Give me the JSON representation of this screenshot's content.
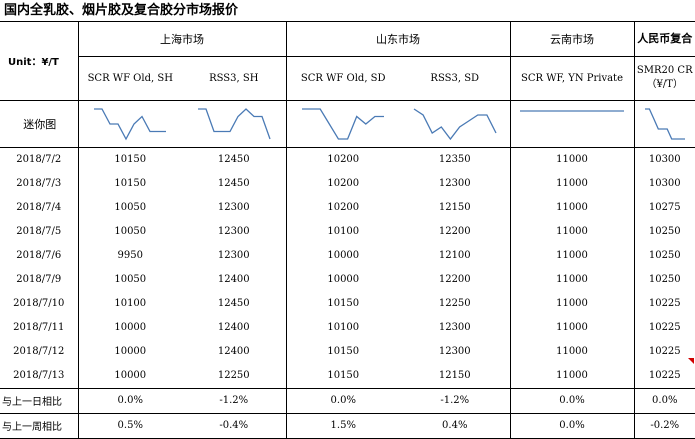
{
  "title": "国内全乳胶、烟片胶及复合胶分市场报价",
  "unit_label": "Unit：¥/T",
  "groups": {
    "shanghai": "上海市场",
    "shandong": "山东市场",
    "yunnan": "云南市场",
    "rmb": "人民币复合"
  },
  "columns": [
    "SCR WF Old, SH",
    "RSS3, SH",
    "SCR WF Old, SD",
    "RSS3, SD",
    "SCR WF, YN Private",
    "SMR20 CR（¥/T）"
  ],
  "spark_label": "迷你图",
  "dates": [
    "2018/7/2",
    "2018/7/3",
    "2018/7/4",
    "2018/7/5",
    "2018/7/6",
    "2018/7/9",
    "2018/7/10",
    "2018/7/11",
    "2018/7/12",
    "2018/7/13"
  ],
  "values": [
    [
      10150,
      10150,
      10050,
      10050,
      9950,
      10050,
      10100,
      10000,
      10000,
      10000
    ],
    [
      12450,
      12450,
      12300,
      12300,
      12300,
      12400,
      12450,
      12400,
      12400,
      12250
    ],
    [
      10200,
      10200,
      10200,
      10100,
      10000,
      10000,
      10150,
      10100,
      10150,
      10150
    ],
    [
      12350,
      12300,
      12150,
      12200,
      12100,
      12200,
      12250,
      12300,
      12300,
      12150
    ],
    [
      11000,
      11000,
      11000,
      11000,
      11000,
      11000,
      11000,
      11000,
      11000,
      11000
    ],
    [
      10300,
      10300,
      10275,
      10250,
      10250,
      10250,
      10225,
      10225,
      10225,
      10225
    ]
  ],
  "day_label": "与上一日相比",
  "week_label": "与上一周相比",
  "day_change": [
    "0.0%",
    "-1.2%",
    "0.0%",
    "-1.2%",
    "0.0%",
    "0.0%"
  ],
  "week_change": [
    "0.5%",
    "-0.4%",
    "1.5%",
    "0.4%",
    "0.0%",
    "-0.2%"
  ],
  "colors": {
    "sparkline": "#4a7ab5",
    "marker": "#d00000"
  }
}
